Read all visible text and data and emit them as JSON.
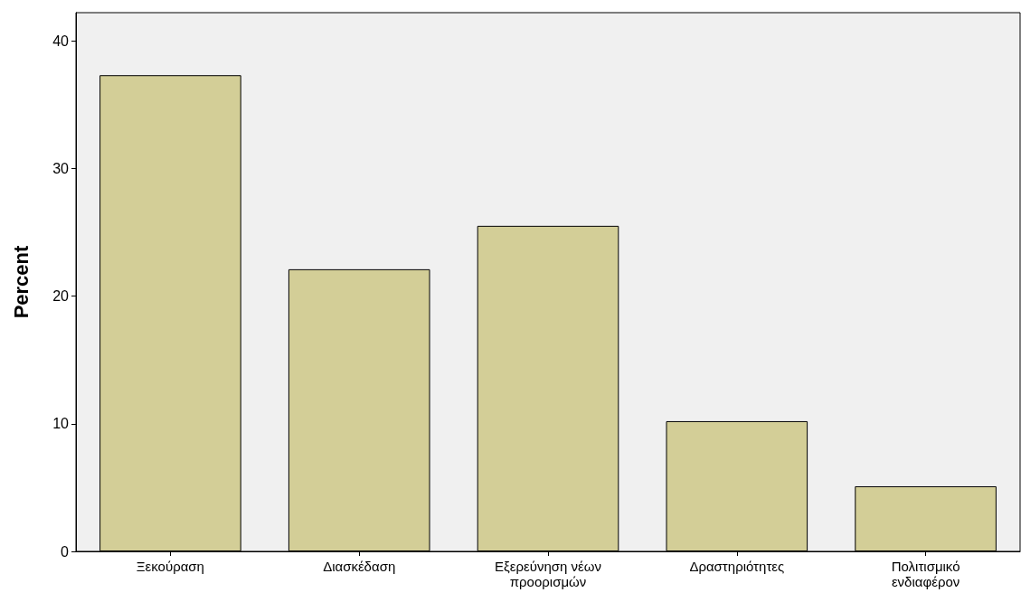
{
  "chart_data": {
    "type": "bar",
    "ylabel": "Percent",
    "categories": [
      "Ξεκούραση",
      "Διασκέδαση",
      "Εξερεύνηση νέων προορισμών",
      "Δραστηριότητες",
      "Πολιτισμικό ενδιαφέρον"
    ],
    "values": [
      37.3,
      22.1,
      25.5,
      10.2,
      5.1
    ],
    "color": "#d3ce97",
    "ylim": [
      0,
      42.2
    ],
    "yticks": [
      0,
      10,
      20,
      30,
      40
    ],
    "grid": false
  }
}
